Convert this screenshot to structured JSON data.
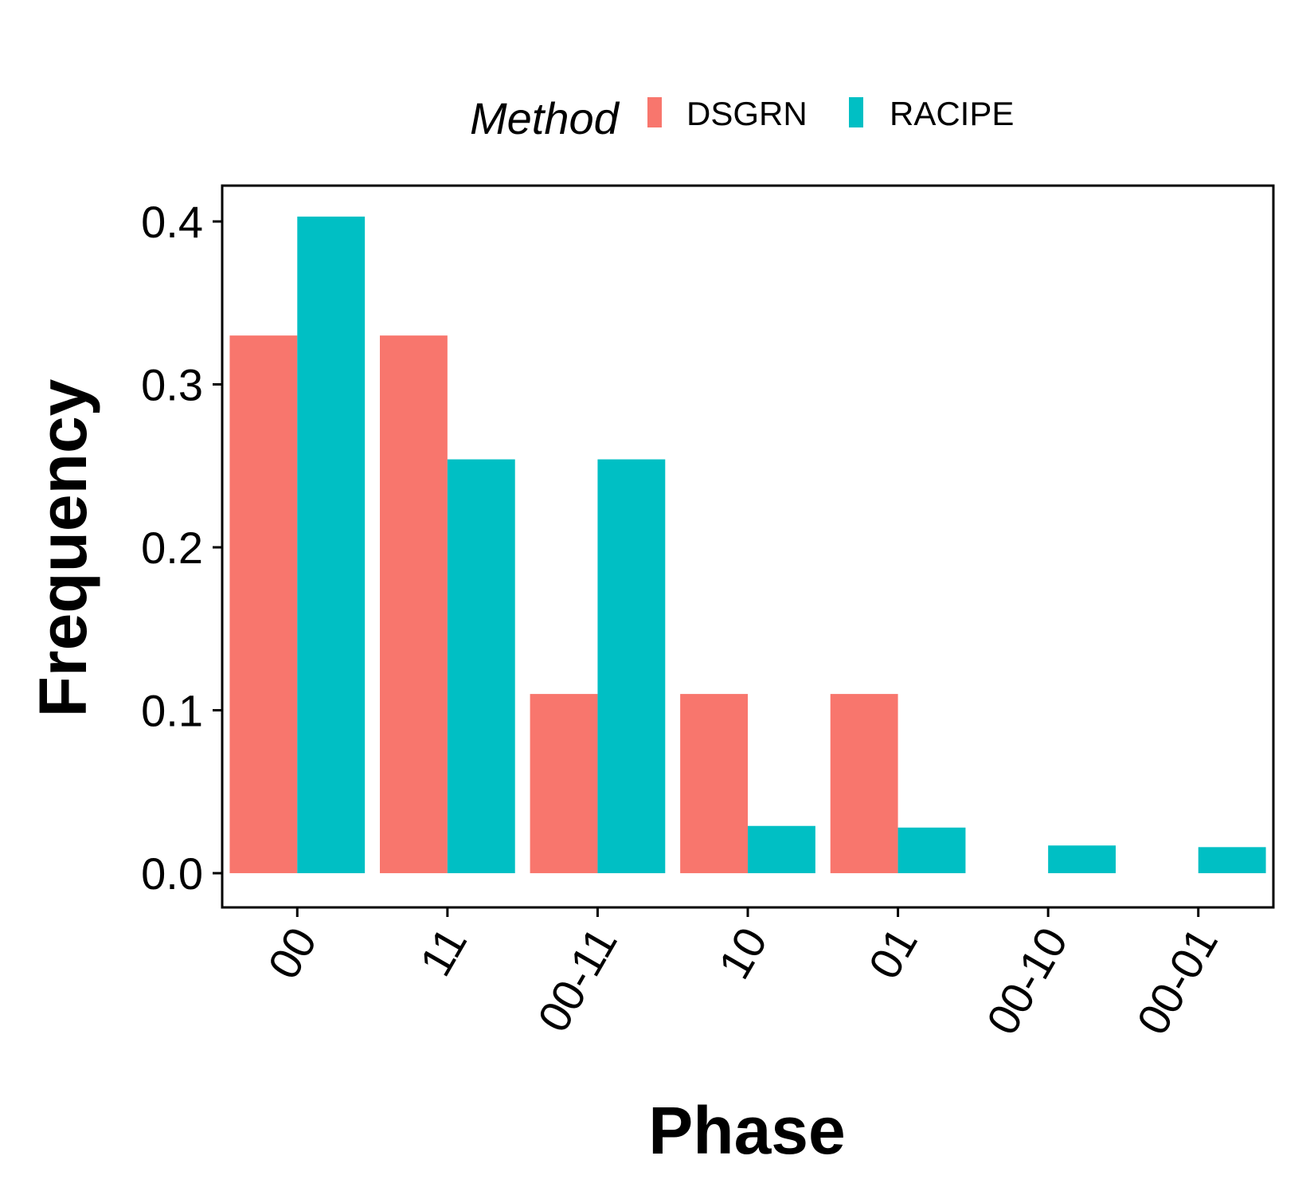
{
  "chart_data": {
    "type": "bar",
    "categories": [
      "00",
      "11",
      "00-11",
      "10",
      "01",
      "00-10",
      "00-01"
    ],
    "series": [
      {
        "name": "DSGRN",
        "color": "#F8766D",
        "values": [
          0.33,
          0.33,
          0.11,
          0.11,
          0.11,
          0,
          0
        ]
      },
      {
        "name": "RACIPE",
        "color": "#00BFC4",
        "values": [
          0.403,
          0.254,
          0.254,
          0.029,
          0.028,
          0.017,
          0.016
        ]
      }
    ],
    "title": "",
    "xlabel": "Phase",
    "ylabel": "Frequency",
    "ylim": [
      -0.021,
      0.422
    ],
    "yticks": [
      "0.0",
      "0.1",
      "0.2",
      "0.3",
      "0.4"
    ],
    "legend": {
      "title": "Method",
      "position": "top"
    },
    "grid": false
  }
}
